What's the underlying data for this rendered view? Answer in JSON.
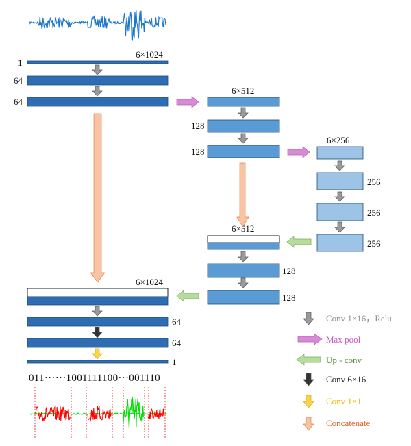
{
  "colors": {
    "dark_block": "#2e6db4",
    "mid_block": "#5b9bd5",
    "light_block": "#9dc3e6",
    "block_stroke": "#1f4e79",
    "signal_input": "#1f77c9",
    "signal_red": "#ff0000",
    "signal_green": "#00e000",
    "arrow_conv": "#9a9a9a",
    "arrow_maxpool": "#d98ad6",
    "arrow_upconv": "#b6dd9c",
    "arrow_conv6x16": "#333333",
    "arrow_conv1x1": "#ffd24d",
    "arrow_concat": "#f8c4a2",
    "legend_conv_text": "#8c8c8c",
    "legend_maxpool_text": "#c060c0",
    "legend_upconv_text": "#5a8a3a",
    "legend_conv6x16_text": "#222222",
    "legend_conv1x1_text": "#f0b800",
    "legend_concat_text": "#d9622a"
  },
  "labels": {
    "enc1": {
      "dim": "6×1024",
      "ch_a": "1",
      "ch_b": "64",
      "ch_c": "64"
    },
    "enc2": {
      "dim": "6×512",
      "ch_a": "128",
      "ch_b": "128"
    },
    "bottom": {
      "dim": "6×256",
      "ch_a": "256",
      "ch_b": "256",
      "ch_c": "256"
    },
    "dec2": {
      "dim": "6×512",
      "ch_a": "128",
      "ch_b": "128"
    },
    "dec1": {
      "dim": "6×1024",
      "ch_a": "64",
      "ch_b": "64",
      "ch_c": "1"
    }
  },
  "binary_sequence": "011······1001111100···001110",
  "legend": [
    {
      "icon": "gray-down-arrow-icon",
      "text": "Conv 1×16，Relu"
    },
    {
      "icon": "pink-right-arrow-icon",
      "text": "Max pool"
    },
    {
      "icon": "green-left-arrow-icon",
      "text": "Up - conv"
    },
    {
      "icon": "black-down-arrow-icon",
      "text": "Conv  6×16"
    },
    {
      "icon": "yellow-down-arrow-icon",
      "text": "Conv  1×1"
    },
    {
      "icon": "orange-down-arrow-icon",
      "text": "Concatenate"
    }
  ]
}
